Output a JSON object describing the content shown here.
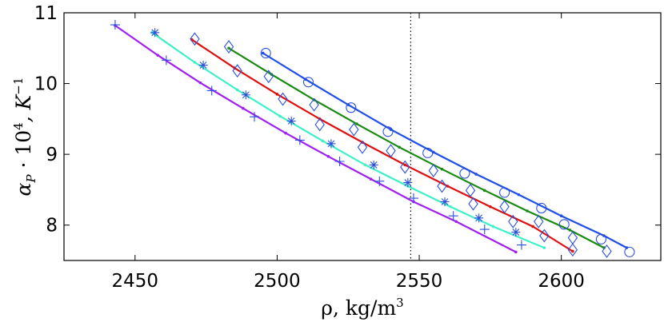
{
  "chart_data": {
    "type": "line",
    "title": "",
    "xlabel": {
      "main": "ρ, kg/m",
      "sup": "3"
    },
    "ylabel": {
      "main": "α",
      "sub": "P",
      "middle": " · 10",
      "sup": "4",
      "tail": ", K",
      "tail_sup": "−1"
    },
    "xlim": [
      2425,
      2635
    ],
    "ylim": [
      7.5,
      11
    ],
    "xticks": [
      2450,
      2500,
      2550,
      2600
    ],
    "yticks": [
      8,
      9,
      10,
      11
    ],
    "grid": false,
    "legend": null,
    "reference_line": {
      "x": 2547,
      "style": "dotted"
    },
    "series": [
      {
        "name": "blue",
        "color": "#1f4fe8",
        "line": {
          "x": [
            2495,
            2510,
            2525,
            2540,
            2555,
            2570,
            2585,
            2600,
            2615,
            2623
          ],
          "y": [
            10.43,
            10.06,
            9.7,
            9.35,
            9.03,
            8.72,
            8.43,
            8.13,
            7.85,
            7.68
          ]
        },
        "markers": {
          "shape": "circle",
          "x": [
            2496,
            2511,
            2526,
            2539,
            2553,
            2566,
            2580,
            2593,
            2601,
            2614,
            2624
          ],
          "y": [
            10.43,
            10.02,
            9.66,
            9.32,
            9.02,
            8.73,
            8.46,
            8.24,
            8.01,
            7.8,
            7.62
          ]
        }
      },
      {
        "name": "green",
        "color": "#1a8a12",
        "line": {
          "x": [
            2483,
            2498,
            2513,
            2528,
            2543,
            2558,
            2573,
            2588,
            2603,
            2615
          ],
          "y": [
            10.5,
            10.13,
            9.77,
            9.43,
            9.1,
            8.79,
            8.49,
            8.2,
            7.93,
            7.68
          ]
        },
        "markers": {
          "shape": "diamond",
          "x": [
            2483,
            2497,
            2513,
            2527,
            2540,
            2555,
            2568,
            2580,
            2592,
            2604,
            2616
          ],
          "y": [
            10.52,
            10.1,
            9.7,
            9.35,
            9.05,
            8.77,
            8.49,
            8.26,
            8.05,
            7.82,
            7.63
          ]
        }
      },
      {
        "name": "red",
        "color": "#e01010",
        "line": {
          "x": [
            2470,
            2485,
            2500,
            2515,
            2530,
            2545,
            2560,
            2575,
            2590,
            2604
          ],
          "y": [
            10.62,
            10.22,
            9.85,
            9.5,
            9.17,
            8.85,
            8.55,
            8.26,
            7.98,
            7.63
          ]
        },
        "markers": {
          "shape": "diamond",
          "x": [
            2471,
            2486,
            2502,
            2515,
            2530,
            2545,
            2558,
            2569,
            2583,
            2594,
            2604
          ],
          "y": [
            10.63,
            10.18,
            9.78,
            9.42,
            9.1,
            8.82,
            8.55,
            8.3,
            8.05,
            7.85,
            7.65
          ]
        }
      },
      {
        "name": "cyan",
        "color": "#3ef0c8",
        "line": {
          "x": [
            2456,
            2471,
            2486,
            2501,
            2516,
            2531,
            2546,
            2561,
            2576,
            2594
          ],
          "y": [
            10.72,
            10.3,
            9.91,
            9.54,
            9.19,
            8.85,
            8.55,
            8.26,
            7.98,
            7.68
          ]
        },
        "markers": {
          "shape": "asterisk",
          "x": [
            2457,
            2474,
            2489,
            2505,
            2519,
            2534,
            2546,
            2559,
            2571,
            2584
          ],
          "y": [
            10.72,
            10.26,
            9.84,
            9.47,
            9.15,
            8.85,
            8.6,
            8.33,
            8.1,
            7.9
          ]
        }
      },
      {
        "name": "purple",
        "color": "#a020f0",
        "line": {
          "x": [
            2443,
            2458,
            2473,
            2488,
            2503,
            2518,
            2533,
            2548,
            2563,
            2584
          ],
          "y": [
            10.82,
            10.4,
            10.01,
            9.65,
            9.3,
            8.97,
            8.65,
            8.33,
            8.05,
            7.62
          ]
        },
        "markers": {
          "shape": "plus",
          "x": [
            2443,
            2461,
            2477,
            2492,
            2508,
            2522,
            2536,
            2548,
            2562,
            2573,
            2586
          ],
          "y": [
            10.83,
            10.33,
            9.9,
            9.53,
            9.2,
            8.9,
            8.62,
            8.38,
            8.13,
            7.94,
            7.72
          ]
        }
      }
    ]
  }
}
